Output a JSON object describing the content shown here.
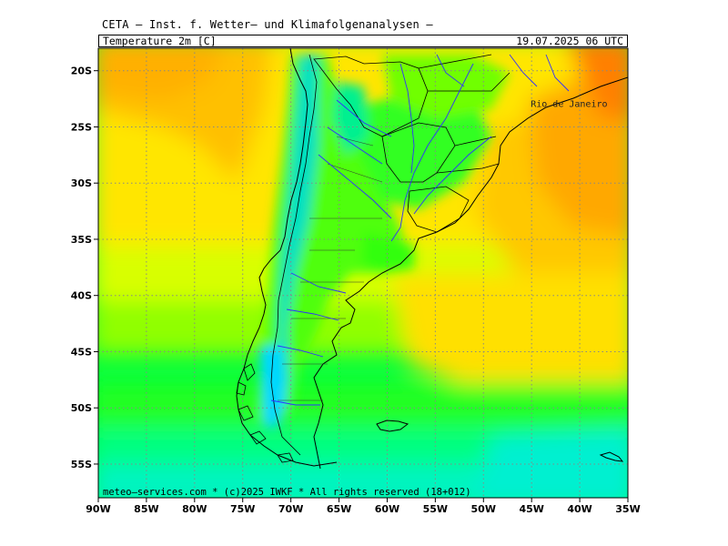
{
  "header": {
    "title": "CETA – Inst. f. Wetter– und Klimafolgenanalysen –",
    "parameter": "Temperature_2m_[C]",
    "valid_time": "19.07.2025  06 UTC"
  },
  "map": {
    "projection": "lat-lon",
    "lon_range": [
      -90,
      -35
    ],
    "lat_range": [
      -58,
      -18
    ],
    "grid": "dotted",
    "lat_ticks": [
      {
        "value": -20,
        "label": "20S"
      },
      {
        "value": -25,
        "label": "25S"
      },
      {
        "value": -30,
        "label": "30S"
      },
      {
        "value": -35,
        "label": "35S"
      },
      {
        "value": -40,
        "label": "40S"
      },
      {
        "value": -45,
        "label": "45S"
      },
      {
        "value": -50,
        "label": "50S"
      },
      {
        "value": -55,
        "label": "55S"
      }
    ],
    "lon_ticks": [
      {
        "value": -90,
        "label": "90W"
      },
      {
        "value": -85,
        "label": "85W"
      },
      {
        "value": -80,
        "label": "80W"
      },
      {
        "value": -75,
        "label": "75W"
      },
      {
        "value": -70,
        "label": "70W"
      },
      {
        "value": -65,
        "label": "65W"
      },
      {
        "value": -60,
        "label": "60W"
      },
      {
        "value": -55,
        "label": "55W"
      },
      {
        "value": -50,
        "label": "50W"
      },
      {
        "value": -45,
        "label": "45W"
      },
      {
        "value": -40,
        "label": "40W"
      },
      {
        "value": -35,
        "label": "35W"
      }
    ],
    "cities": [
      {
        "name": "Rio de Janeiro",
        "lon": -43.2,
        "lat": -22.9
      }
    ],
    "colors": {
      "cold": "#00f0c8",
      "cool": "#00ff40",
      "mild": "#b8ff00",
      "warm": "#ffe600",
      "hot": "#ff9800",
      "coast": "#000000",
      "rivers": "#3030ff"
    }
  },
  "footer": {
    "copyright": "meteo–services.com * (c)2025 IWKF * All rights reserved (18+012)"
  }
}
